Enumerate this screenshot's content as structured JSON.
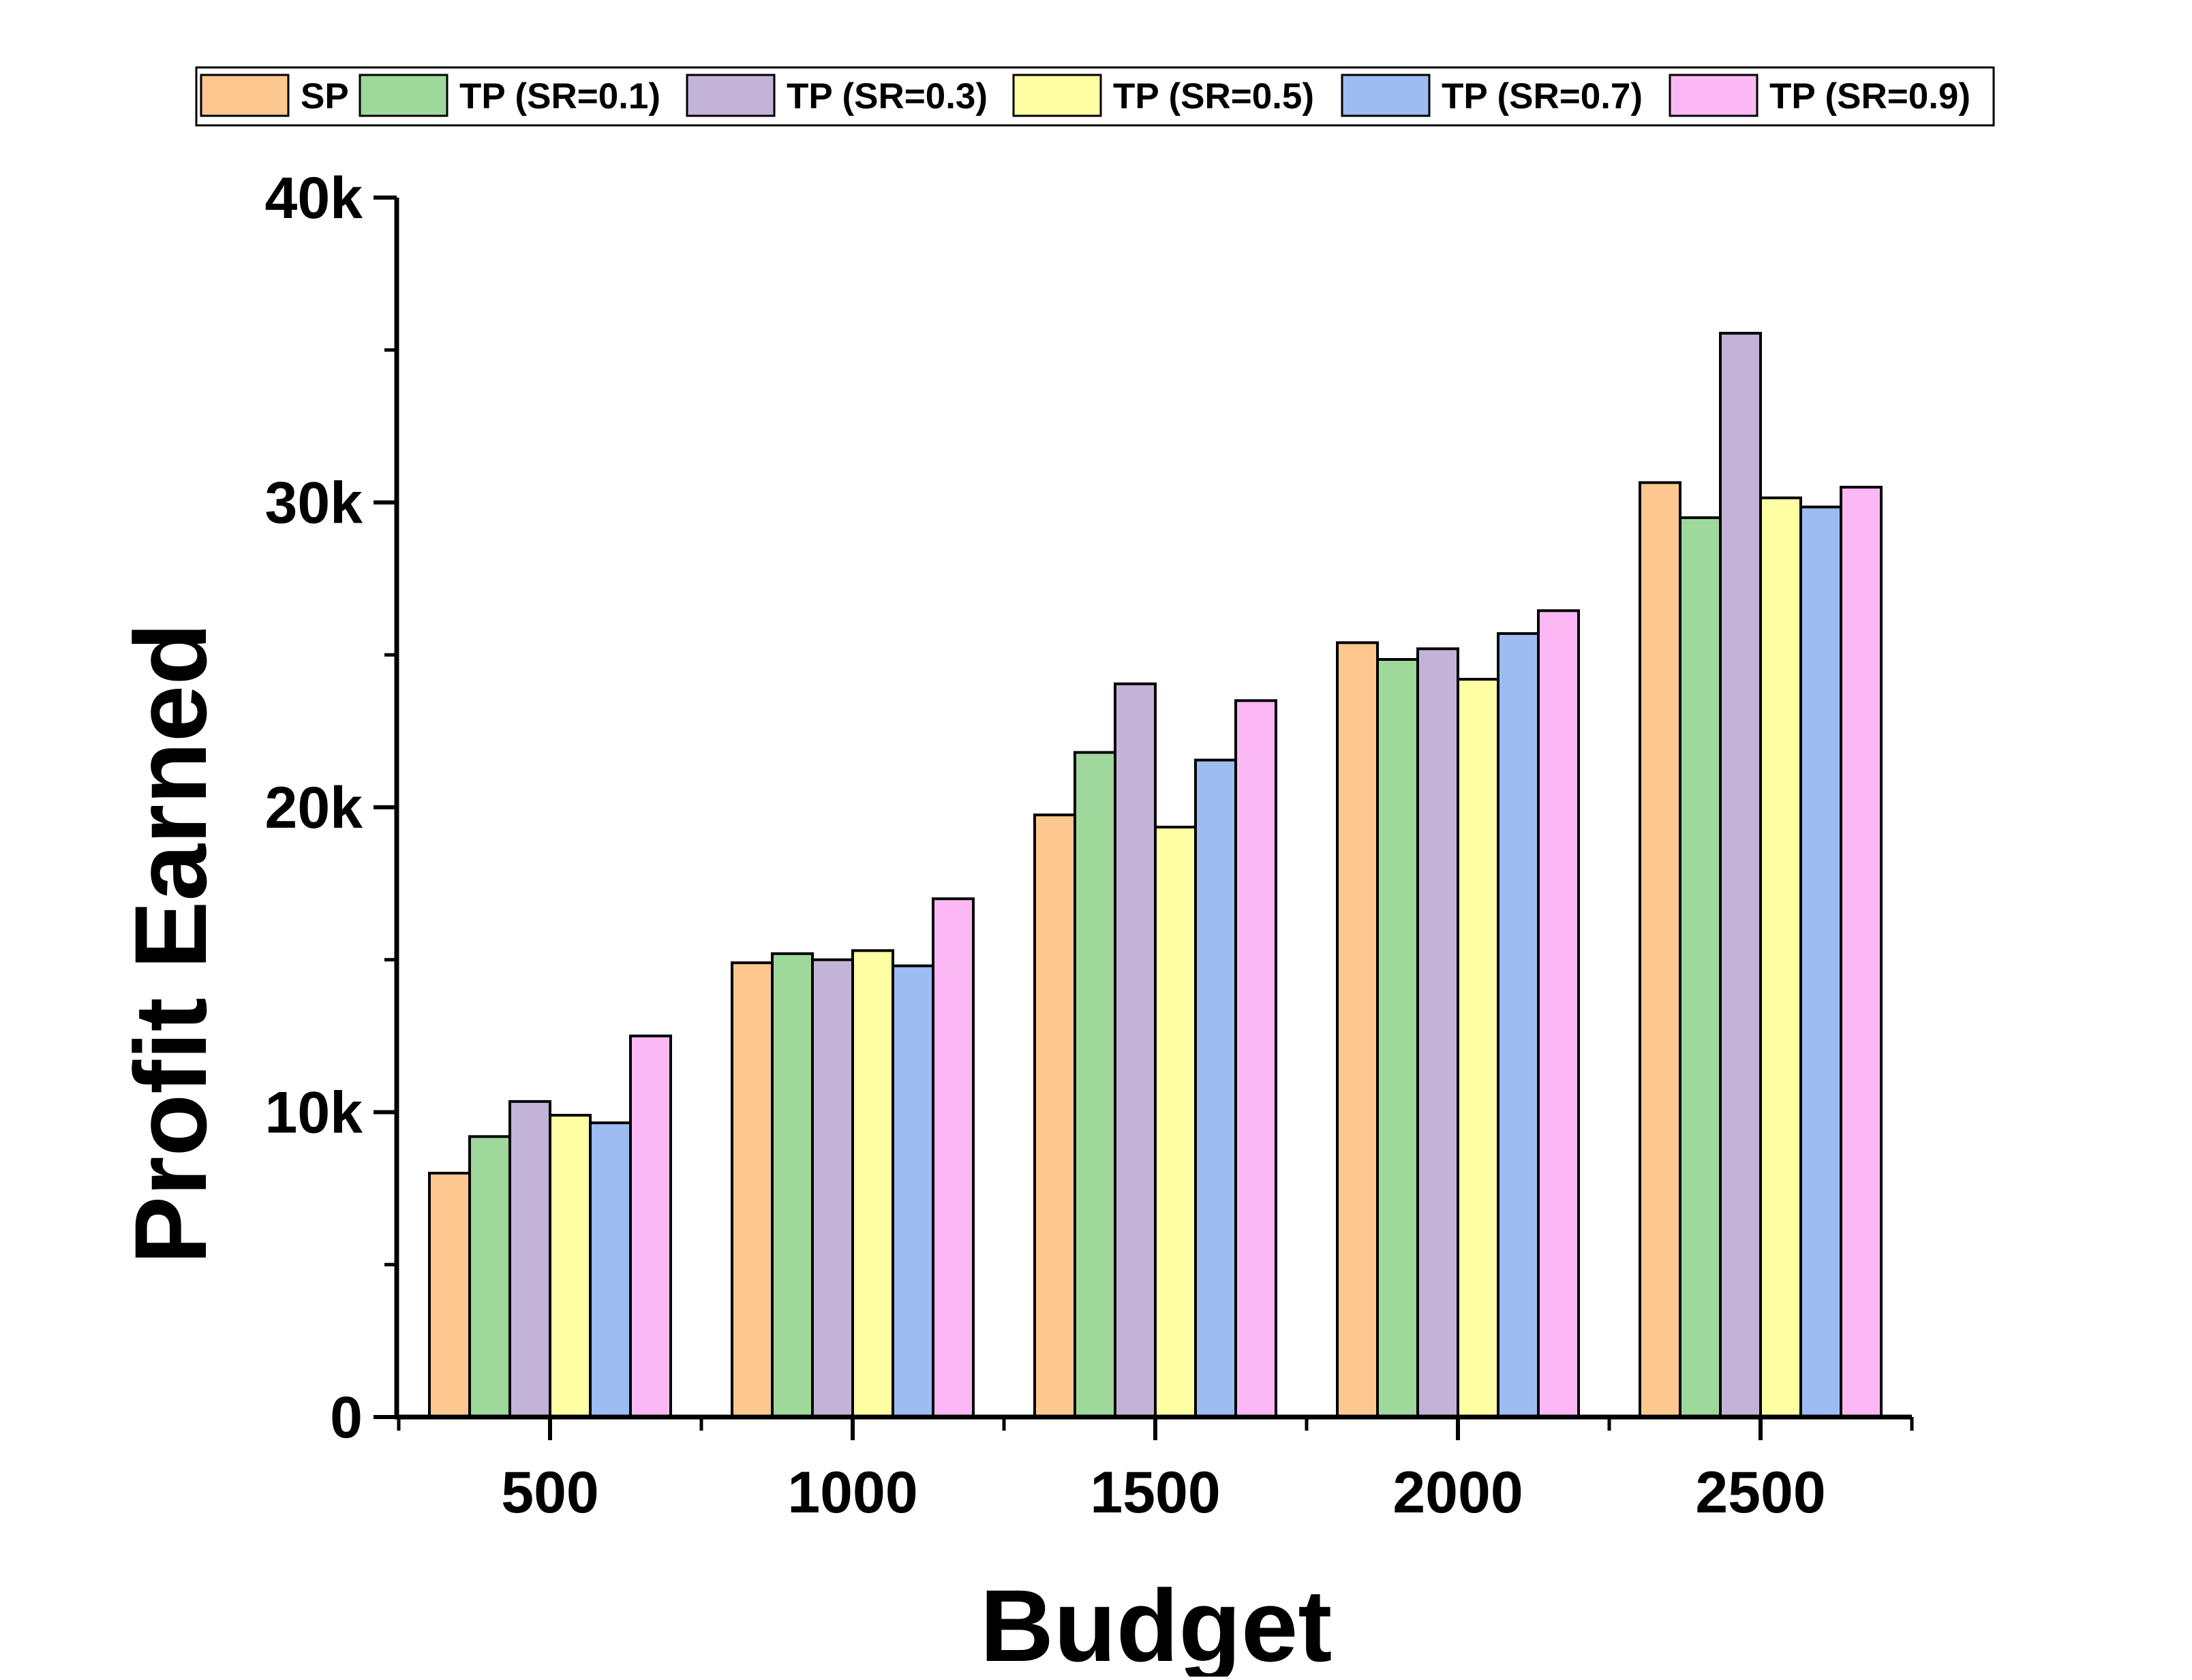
{
  "chart_data": {
    "type": "bar",
    "xlabel": "Budget",
    "ylabel": "Profit Earned",
    "categories": [
      "500",
      "1000",
      "1500",
      "2000",
      "2500"
    ],
    "ylim": [
      0,
      40000
    ],
    "yticks": [
      0,
      10000,
      20000,
      30000,
      40000
    ],
    "ytick_labels": [
      "0",
      "10k",
      "20k",
      "30k",
      "40k"
    ],
    "grid": false,
    "legend_position": "top",
    "series": [
      {
        "name": "SP",
        "color": "#FCC890",
        "values": [
          8000,
          14900,
          19750,
          25400,
          30650
        ]
      },
      {
        "name": "TP (SR=0.1)",
        "color": "#9FD89B",
        "values": [
          9200,
          15200,
          21800,
          24850,
          29500
        ]
      },
      {
        "name": "TP (SR=0.3)",
        "color": "#C4B3D8",
        "values": [
          10350,
          15000,
          24050,
          25200,
          35550
        ]
      },
      {
        "name": "TP (SR=0.5)",
        "color": "#FFFFA3",
        "values": [
          9900,
          15300,
          19350,
          24200,
          30150
        ]
      },
      {
        "name": "TP (SR=0.7)",
        "color": "#9DBCF2",
        "values": [
          9650,
          14800,
          21550,
          25700,
          29850
        ]
      },
      {
        "name": "TP (SR=0.9)",
        "color": "#FCB8F4",
        "values": [
          12500,
          17000,
          23500,
          26450,
          30500
        ]
      }
    ]
  }
}
